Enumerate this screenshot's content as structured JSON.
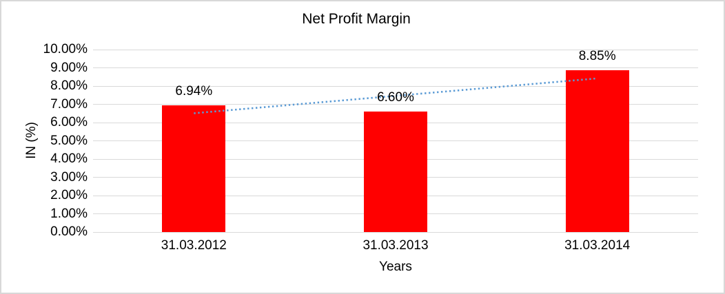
{
  "chart_data": {
    "type": "bar",
    "title": "Net Profit Margin",
    "xlabel": "Years",
    "ylabel": "IN (%)",
    "categories": [
      "31.03.2012",
      "31.03.2013",
      "31.03.2014"
    ],
    "series": [
      {
        "name": "Net Profit Margin",
        "color": "#FF0000",
        "values": [
          6.94,
          6.6,
          8.85
        ]
      }
    ],
    "data_labels": [
      "6.94%",
      "6.60%",
      "8.85%"
    ],
    "ylim": [
      0,
      10
    ],
    "ytick_step": 1,
    "ytick_labels": [
      "0.00%",
      "1.00%",
      "2.00%",
      "3.00%",
      "4.00%",
      "5.00%",
      "6.00%",
      "7.00%",
      "8.00%",
      "9.00%",
      "10.00%"
    ],
    "grid": true,
    "legend": "none",
    "gridline_color": "#D9D9D9",
    "border_color": "#D8D8D8",
    "text_color": "#000000",
    "trendline": {
      "type": "linear",
      "style": "dotted",
      "color": "#5B9BD5",
      "start_value": 6.51,
      "end_value": 8.42
    }
  }
}
